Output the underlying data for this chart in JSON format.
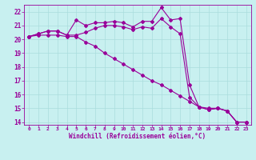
{
  "xlabel": "Windchill (Refroidissement éolien,°C)",
  "background_color": "#c8f0f0",
  "line_color": "#990099",
  "grid_color": "#aadddd",
  "xlim": [
    -0.5,
    23.5
  ],
  "ylim": [
    13.8,
    22.5
  ],
  "xticks": [
    0,
    1,
    2,
    3,
    4,
    5,
    6,
    7,
    8,
    9,
    10,
    11,
    12,
    13,
    14,
    15,
    16,
    17,
    18,
    19,
    20,
    21,
    22,
    23
  ],
  "yticks": [
    14,
    15,
    16,
    17,
    18,
    19,
    20,
    21,
    22
  ],
  "line1": [
    20.2,
    20.4,
    20.6,
    20.6,
    20.3,
    21.4,
    21.0,
    21.2,
    21.2,
    21.3,
    21.2,
    20.9,
    21.3,
    21.3,
    22.3,
    21.4,
    21.5,
    16.7,
    15.1,
    15.0,
    15.0,
    14.8,
    14.0,
    14.0
  ],
  "line2": [
    20.2,
    20.4,
    20.6,
    20.6,
    20.3,
    20.3,
    20.5,
    20.8,
    21.0,
    21.0,
    20.9,
    20.7,
    20.9,
    20.8,
    21.5,
    20.9,
    20.4,
    15.8,
    15.1,
    14.9,
    15.0,
    14.8,
    14.0,
    14.0
  ],
  "line3": [
    20.2,
    20.3,
    20.3,
    20.3,
    20.2,
    20.2,
    19.8,
    19.5,
    19.0,
    18.6,
    18.2,
    17.8,
    17.4,
    17.0,
    16.7,
    16.3,
    15.9,
    15.5,
    15.1,
    14.9,
    15.0,
    14.8,
    14.0,
    14.0
  ]
}
